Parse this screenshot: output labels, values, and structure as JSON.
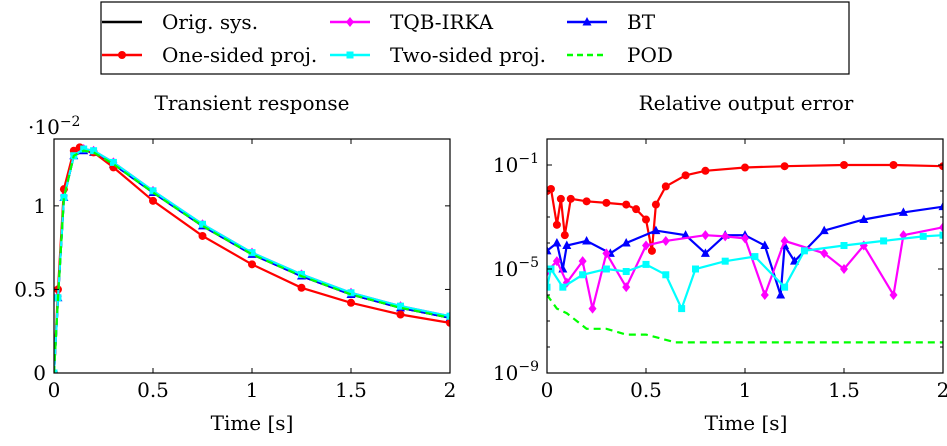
{
  "legend": {
    "entries": [
      {
        "label": "Orig. sys.",
        "color": "#000000",
        "dash": "solid",
        "marker": "none"
      },
      {
        "label": "TQB-IRKA",
        "color": "#ff00ff",
        "dash": "solid",
        "marker": "diamond"
      },
      {
        "label": "BT",
        "color": "#0000ff",
        "dash": "solid",
        "marker": "triangle"
      },
      {
        "label": "One-sided proj.",
        "color": "#ff0000",
        "dash": "solid",
        "marker": "circle"
      },
      {
        "label": "Two-sided proj.",
        "color": "#00ffff",
        "dash": "solid",
        "marker": "square"
      },
      {
        "label": "POD",
        "color": "#00ff00",
        "dash": "dashed",
        "marker": "none"
      }
    ]
  },
  "chart_data": [
    {
      "type": "line",
      "title": "Transient response",
      "xlabel": "Time [s]",
      "ylabel": "",
      "y_multiplier_label": "·10",
      "y_multiplier_exp": "−2",
      "xlim": [
        0,
        2
      ],
      "ylim": [
        0,
        1.4
      ],
      "yscale": "linear",
      "xticks": [
        0,
        0.5,
        1,
        1.5,
        2
      ],
      "xtick_labels": [
        "0",
        "0.5",
        "1",
        "1.5",
        "2"
      ],
      "yticks": [
        0,
        0.5,
        1
      ],
      "ytick_labels": [
        "0",
        "0.5",
        "1"
      ],
      "grid": false,
      "series": [
        {
          "name": "Orig. sys.",
          "x": [
            0,
            0.02,
            0.05,
            0.1,
            0.15,
            0.2,
            0.3,
            0.5,
            0.75,
            1,
            1.25,
            1.5,
            1.75,
            2
          ],
          "y": [
            0,
            0.45,
            1.05,
            1.3,
            1.33,
            1.32,
            1.25,
            1.08,
            0.88,
            0.71,
            0.58,
            0.47,
            0.39,
            0.33
          ]
        },
        {
          "name": "TQB-IRKA",
          "x": [
            0,
            0.02,
            0.05,
            0.1,
            0.15,
            0.2,
            0.3,
            0.5,
            0.75,
            1,
            1.25,
            1.5,
            1.75,
            2
          ],
          "y": [
            0,
            0.46,
            1.06,
            1.31,
            1.34,
            1.33,
            1.26,
            1.09,
            0.89,
            0.72,
            0.59,
            0.48,
            0.4,
            0.34
          ]
        },
        {
          "name": "BT",
          "x": [
            0,
            0.02,
            0.05,
            0.1,
            0.15,
            0.2,
            0.3,
            0.5,
            0.75,
            1,
            1.25,
            1.5,
            1.75,
            2
          ],
          "y": [
            0,
            0.45,
            1.05,
            1.3,
            1.33,
            1.32,
            1.25,
            1.08,
            0.88,
            0.71,
            0.58,
            0.47,
            0.39,
            0.33
          ]
        },
        {
          "name": "One-sided proj.",
          "x": [
            0,
            0.02,
            0.05,
            0.1,
            0.13,
            0.2,
            0.3,
            0.5,
            0.75,
            1,
            1.25,
            1.5,
            1.75,
            2
          ],
          "y": [
            0,
            0.5,
            1.1,
            1.33,
            1.35,
            1.32,
            1.23,
            1.03,
            0.82,
            0.65,
            0.51,
            0.42,
            0.35,
            0.3
          ]
        },
        {
          "name": "Two-sided proj.",
          "x": [
            0,
            0.02,
            0.05,
            0.1,
            0.15,
            0.2,
            0.3,
            0.5,
            0.75,
            1,
            1.25,
            1.5,
            1.75,
            2
          ],
          "y": [
            0,
            0.45,
            1.05,
            1.3,
            1.34,
            1.33,
            1.26,
            1.09,
            0.89,
            0.72,
            0.59,
            0.48,
            0.4,
            0.34
          ]
        },
        {
          "name": "POD",
          "x": [
            0,
            0.02,
            0.05,
            0.1,
            0.15,
            0.2,
            0.3,
            0.5,
            0.75,
            1,
            1.25,
            1.5,
            1.75,
            2
          ],
          "y": [
            0,
            0.45,
            1.05,
            1.3,
            1.33,
            1.32,
            1.25,
            1.08,
            0.88,
            0.71,
            0.58,
            0.47,
            0.39,
            0.33
          ]
        }
      ]
    },
    {
      "type": "line",
      "title": "Relative output error",
      "xlabel": "Time [s]",
      "ylabel": "",
      "xlim": [
        0,
        2
      ],
      "ylim": [
        1e-09,
        1
      ],
      "yscale": "log",
      "xticks": [
        0,
        0.5,
        1,
        1.5,
        2
      ],
      "xtick_labels": [
        "0",
        "0.5",
        "1",
        "1.5",
        "2"
      ],
      "yticks": [
        1e-09,
        1e-05,
        0.1
      ],
      "ytick_base": "10",
      "ytick_exps": [
        "−9",
        "−5",
        "−1"
      ],
      "grid": false,
      "series": [
        {
          "name": "One-sided proj.",
          "x": [
            0,
            0.02,
            0.05,
            0.07,
            0.09,
            0.12,
            0.2,
            0.3,
            0.4,
            0.45,
            0.5,
            0.53,
            0.55,
            0.6,
            0.7,
            0.8,
            1,
            1.2,
            1.5,
            1.75,
            2
          ],
          "y": [
            0.01,
            0.012,
            0.0005,
            0.005,
            0.0002,
            0.005,
            0.004,
            0.0035,
            0.003,
            0.002,
            0.0008,
            5e-05,
            0.003,
            0.015,
            0.04,
            0.06,
            0.08,
            0.09,
            0.1,
            0.1,
            0.09
          ]
        },
        {
          "name": "BT",
          "x": [
            0,
            0.05,
            0.08,
            0.1,
            0.2,
            0.32,
            0.4,
            0.55,
            0.7,
            0.8,
            0.9,
            1,
            1.1,
            1.18,
            1.2,
            1.25,
            1.4,
            1.6,
            1.8,
            2
          ],
          "y": [
            5e-05,
            0.0001,
            1e-05,
            8e-05,
            0.00012,
            4e-05,
            0.0001,
            0.0003,
            0.0002,
            4e-05,
            0.0002,
            0.0002,
            8e-05,
            1e-06,
            8e-05,
            2e-05,
            0.0003,
            0.0008,
            0.0015,
            0.0025
          ]
        },
        {
          "name": "TQB-IRKA",
          "x": [
            0,
            0.05,
            0.1,
            0.18,
            0.23,
            0.3,
            0.4,
            0.5,
            0.6,
            0.8,
            0.9,
            1,
            1.1,
            1.2,
            1.4,
            1.5,
            1.6,
            1.75,
            1.8,
            2
          ],
          "y": [
            8e-06,
            2e-05,
            3e-06,
            2e-05,
            3e-07,
            4e-05,
            2e-06,
            8e-05,
            0.00012,
            0.0002,
            0.00018,
            0.00015,
            1e-06,
            0.00012,
            4e-05,
            1e-05,
            8e-05,
            1e-06,
            0.0002,
            0.0004
          ]
        },
        {
          "name": "Two-sided proj.",
          "x": [
            0,
            0.02,
            0.08,
            0.18,
            0.3,
            0.4,
            0.5,
            0.6,
            0.68,
            0.75,
            0.9,
            1.05,
            1.2,
            1.3,
            1.5,
            1.7,
            1.9,
            2
          ],
          "y": [
            2e-06,
            1e-05,
            2e-06,
            6e-06,
            1e-05,
            8e-06,
            1.5e-05,
            6e-06,
            3e-07,
            1e-05,
            2e-05,
            3e-05,
            2e-06,
            5e-05,
            8e-05,
            0.00012,
            0.00018,
            0.0002
          ]
        },
        {
          "name": "POD",
          "x": [
            0,
            0.05,
            0.1,
            0.15,
            0.2,
            0.3,
            0.4,
            0.5,
            0.65,
            0.8,
            0.95,
            1.1,
            1.25,
            1.4,
            1.55,
            1.7,
            1.85,
            2
          ],
          "y": [
            1e-06,
            3e-07,
            2e-07,
            1e-07,
            5e-08,
            5e-08,
            3e-08,
            3e-08,
            1.5e-08,
            1.5e-08,
            1.5e-08,
            1.5e-08,
            1.5e-08,
            1.5e-08,
            1.5e-08,
            1.5e-08,
            1.5e-08,
            1.5e-08
          ]
        }
      ]
    }
  ]
}
